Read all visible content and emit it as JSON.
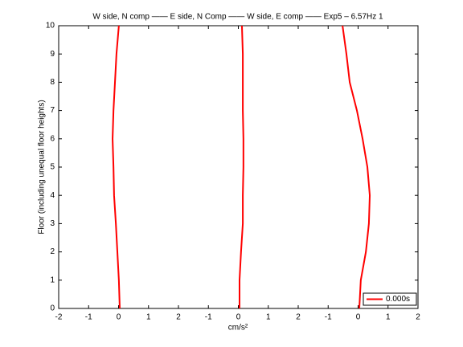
{
  "chart_data": {
    "type": "line",
    "title": "W side, N comp —— E side, N Comp —— W side, E comp —— Exp5 – 6.57Hz 1",
    "x_label": "cm/s²",
    "y_label": "Floor (including unequal floor heights)",
    "series": [
      {
        "name": "0.000s",
        "color": "#ff0000",
        "x": [
          0.04,
          0.01,
          -0.04,
          -0.09,
          -0.15,
          -0.17,
          -0.2,
          -0.17,
          -0.12,
          -0.07,
          0.01,
          null,
          4.04,
          4.04,
          4.09,
          4.15,
          4.15,
          4.17,
          4.17,
          4.15,
          4.15,
          4.15,
          4.12,
          null,
          8.04,
          8.09,
          8.26,
          8.36,
          8.39,
          8.31,
          8.15,
          7.96,
          7.72,
          7.61,
          7.48
        ],
        "values": [
          0,
          1,
          2,
          3,
          4,
          5,
          6,
          7,
          8,
          9,
          10,
          null,
          0,
          1,
          2,
          3,
          4,
          5,
          6,
          7,
          8,
          9,
          10,
          null,
          0,
          1,
          2,
          3,
          4,
          5,
          6,
          7,
          8,
          9,
          10
        ]
      }
    ],
    "xlim": [
      -2,
      10
    ],
    "xticks": [
      -2,
      -1,
      0,
      1,
      2,
      {
        "value": 3,
        "label": "-1"
      },
      {
        "value": 4,
        "label": "0"
      },
      {
        "value": 5,
        "label": "1"
      },
      {
        "value": 6,
        "label": "2"
      },
      {
        "value": 7,
        "label": "-1"
      },
      {
        "value": 8,
        "label": "0"
      },
      {
        "value": 9,
        "label": "1"
      },
      {
        "value": 10,
        "label": "2"
      }
    ],
    "ylim": [
      0,
      10
    ],
    "yticks": [
      0,
      1,
      2,
      3,
      4,
      5,
      6,
      7,
      8,
      9,
      10
    ],
    "legend": "lower right"
  }
}
